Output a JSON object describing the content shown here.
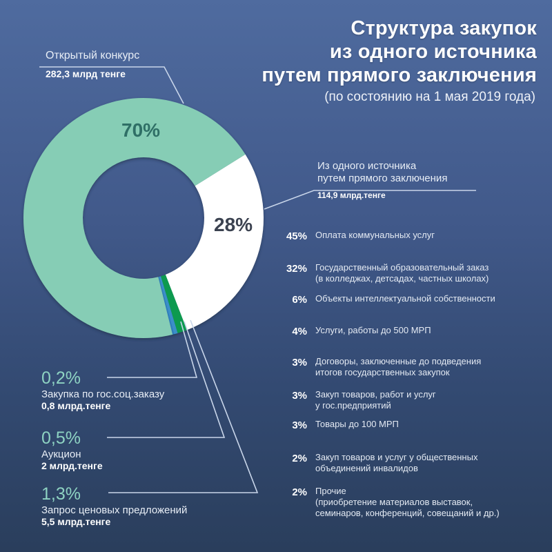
{
  "title": {
    "line1": "Структура закупок",
    "line2": "из одного источника",
    "line3": "путем прямого заключения",
    "subtitle": "(по состоянию на 1 мая 2019 года)"
  },
  "donut": {
    "open_contest": {
      "name": "Открытый конкурс",
      "value": "282,3 млрд тенге",
      "pct": "70%",
      "color": "#86cdb5"
    },
    "single_source": {
      "name_line1": "Из одного источника",
      "name_line2": "путем прямого заключения",
      "value": "114,9 млрд.тенге",
      "pct": "28%",
      "color": "#ffffff"
    },
    "social_order": {
      "pct": "0,2%",
      "name": "Закупка по гос.соц.заказу",
      "value": "0,8 млрд.тенге",
      "color": "#2d7fbf"
    },
    "auction": {
      "pct": "0,5%",
      "name": "Аукцион",
      "value": "2 млрд.тенге",
      "color": "#3b8fc9"
    },
    "price_quotes": {
      "pct": "1,3%",
      "name": "Запрос ценовых предложений",
      "value": "5,5 млрд.тенге",
      "color": "#0f9a50"
    }
  },
  "breakdown": [
    {
      "pct": "45%",
      "line1": "Оплата коммунальных услуг",
      "line2": ""
    },
    {
      "pct": "32%",
      "line1": "Государственный образовательный заказ",
      "line2": "(в колледжах, детсадах, частных школах)"
    },
    {
      "pct": "6%",
      "line1": "Объекты интеллектуальной собственности",
      "line2": ""
    },
    {
      "pct": "4%",
      "line1": "Услуги, работы до 500 МРП",
      "line2": ""
    },
    {
      "pct": "3%",
      "line1": "Договоры, заключенные до подведения",
      "line2": "итогов государственных закупок"
    },
    {
      "pct": "3%",
      "line1": "Закуп товаров, работ и услуг",
      "line2": "у гос.предприятий"
    },
    {
      "pct": "3%",
      "line1": "Товары до 100 МРП",
      "line2": ""
    },
    {
      "pct": "2%",
      "line1": "Закуп товаров и услуг у общественных",
      "line2": "объединений инвалидов"
    },
    {
      "pct": "2%",
      "line1": "Прочие",
      "line2": "(приобретение материалов выставок,",
      "line3": "семинаров, конференций, совещаний и др.)"
    }
  ],
  "chart_data": [
    {
      "type": "pie",
      "title": "Структура закупок из одного источника путем прямого заключения (по состоянию на 1 мая 2019 года)",
      "categories": [
        "Открытый конкурс",
        "Из одного источника путем прямого заключения",
        "Запрос ценовых предложений",
        "Аукцион",
        "Закупка по гос.соц.заказу"
      ],
      "values": [
        70,
        28,
        1.3,
        0.5,
        0.2
      ],
      "amounts_bln_tenge": [
        282.3,
        114.9,
        5.5,
        2,
        0.8
      ],
      "unit": "%",
      "style": "donut"
    },
    {
      "type": "table",
      "title": "Из одного источника путем прямого заключения — 114,9 млрд.тенге",
      "categories": [
        "Оплата коммунальных услуг",
        "Государственный образовательный заказ (в колледжах, детсадах, частных школах)",
        "Объекты интеллектуальной собственности",
        "Услуги, работы до 500 МРП",
        "Договоры, заключенные до подведения итогов государственных закупок",
        "Закуп товаров, работ и услуг у гос.предприятий",
        "Товары до 100 МРП",
        "Закуп товаров и услуг у общественных объединений инвалидов",
        "Прочие (приобретение материалов выставок, семинаров, конференций, совещаний и др.)"
      ],
      "values": [
        45,
        32,
        6,
        4,
        3,
        3,
        3,
        2,
        2
      ],
      "unit": "%"
    }
  ]
}
